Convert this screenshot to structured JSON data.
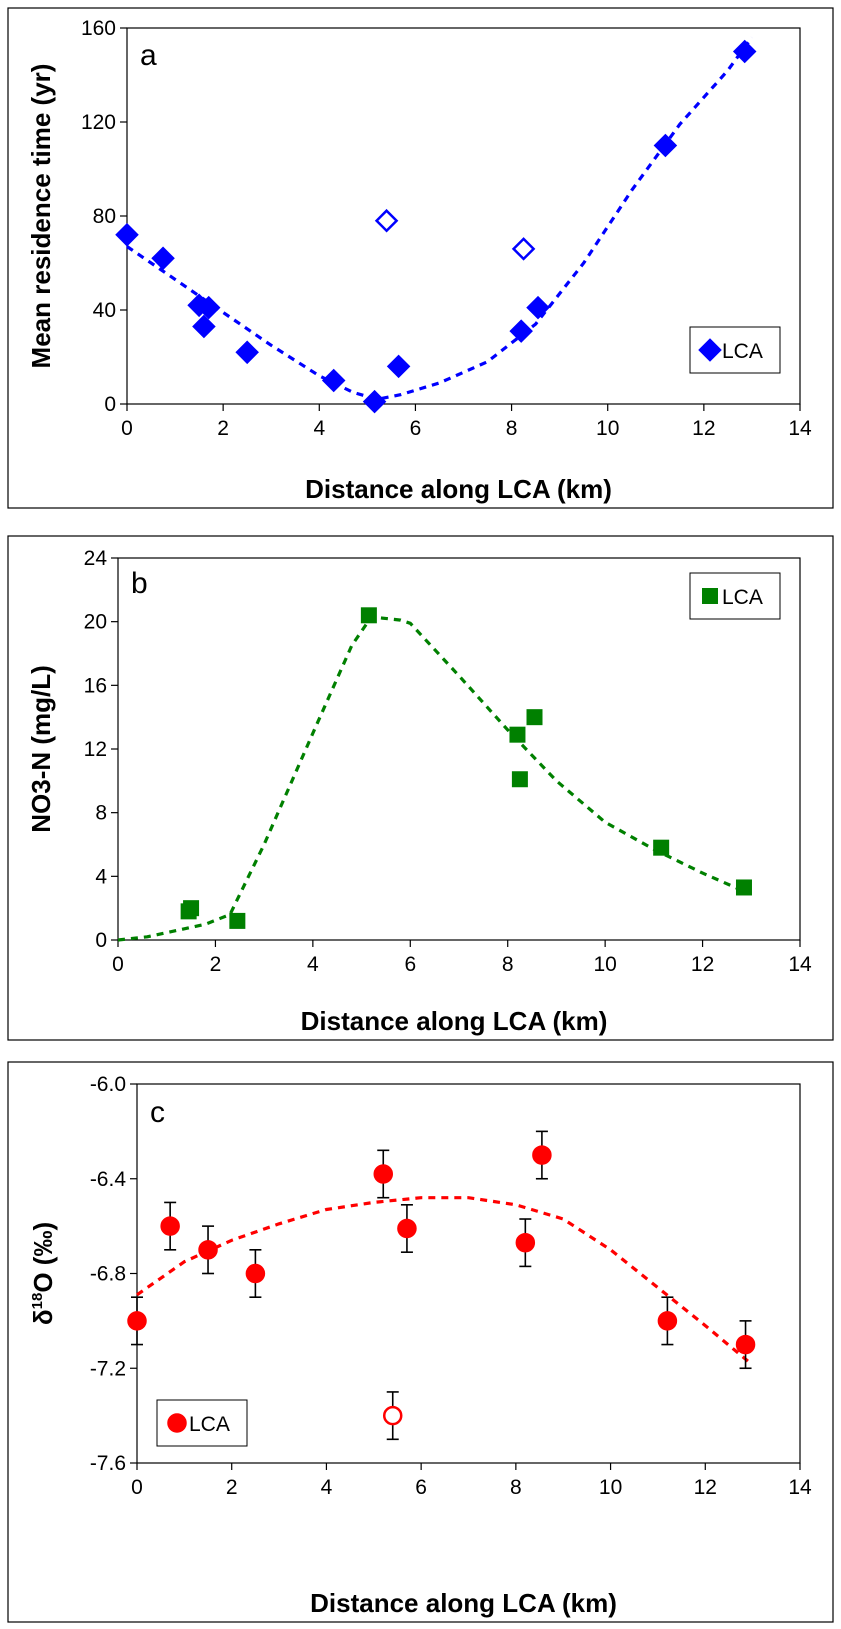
{
  "chart_data": [
    {
      "type": "scatter",
      "panel_letter": "a",
      "xlabel": "Distance along LCA (km)",
      "ylabel": "Mean residence time (yr)",
      "xlim": [
        0,
        14
      ],
      "ylim": [
        0,
        160
      ],
      "x_ticks": [
        "0",
        "2",
        "4",
        "6",
        "8",
        "10",
        "12",
        "14"
      ],
      "y_ticks": [
        "0",
        "40",
        "80",
        "120",
        "160"
      ],
      "color": "#0000ff",
      "marker": "diamond",
      "legend": {
        "label": "LCA",
        "placement": "bottom-right"
      },
      "points": [
        {
          "x": 0,
          "y": 72
        },
        {
          "x": 0.75,
          "y": 62
        },
        {
          "x": 1.5,
          "y": 42
        },
        {
          "x": 1.6,
          "y": 33
        },
        {
          "x": 1.7,
          "y": 41
        },
        {
          "x": 2.5,
          "y": 22
        },
        {
          "x": 4.3,
          "y": 10
        },
        {
          "x": 5.15,
          "y": 1
        },
        {
          "x": 5.65,
          "y": 16
        },
        {
          "x": 8.2,
          "y": 31
        },
        {
          "x": 8.55,
          "y": 41
        },
        {
          "x": 11.2,
          "y": 110
        },
        {
          "x": 12.85,
          "y": 150
        }
      ],
      "open_points": [
        {
          "x": 5.4,
          "y": 78
        },
        {
          "x": 8.25,
          "y": 66
        }
      ],
      "trendline": [
        {
          "x": 0,
          "y": 67
        },
        {
          "x": 1,
          "y": 53
        },
        {
          "x": 2,
          "y": 39
        },
        {
          "x": 3,
          "y": 25
        },
        {
          "x": 4,
          "y": 12
        },
        {
          "x": 4.7,
          "y": 5
        },
        {
          "x": 5.2,
          "y": 2
        },
        {
          "x": 5.7,
          "y": 4
        },
        {
          "x": 6.5,
          "y": 9
        },
        {
          "x": 7.5,
          "y": 18
        },
        {
          "x": 8.5,
          "y": 34
        },
        {
          "x": 9.5,
          "y": 60
        },
        {
          "x": 10.5,
          "y": 91
        },
        {
          "x": 11.5,
          "y": 119
        },
        {
          "x": 12.5,
          "y": 142
        },
        {
          "x": 13,
          "y": 156
        }
      ]
    },
    {
      "type": "scatter",
      "panel_letter": "b",
      "xlabel": "Distance along LCA (km)",
      "ylabel": "NO3-N (mg/L)",
      "xlim": [
        0,
        14
      ],
      "ylim": [
        0,
        24
      ],
      "x_ticks": [
        "0",
        "2",
        "4",
        "6",
        "8",
        "10",
        "12",
        "14"
      ],
      "y_ticks": [
        "0",
        "4",
        "8",
        "12",
        "16",
        "20",
        "24"
      ],
      "color": "#008000",
      "marker": "square",
      "legend": {
        "label": "LCA",
        "placement": "top-right"
      },
      "points": [
        {
          "x": 1.45,
          "y": 1.8
        },
        {
          "x": 1.5,
          "y": 2.0
        },
        {
          "x": 2.45,
          "y": 1.2
        },
        {
          "x": 5.15,
          "y": 20.4
        },
        {
          "x": 8.2,
          "y": 12.9
        },
        {
          "x": 8.25,
          "y": 10.1
        },
        {
          "x": 8.55,
          "y": 14.0
        },
        {
          "x": 11.15,
          "y": 5.8
        },
        {
          "x": 12.85,
          "y": 3.3
        }
      ],
      "trendline": [
        {
          "x": 0,
          "y": 0
        },
        {
          "x": 0.6,
          "y": 0.2
        },
        {
          "x": 1.2,
          "y": 0.6
        },
        {
          "x": 1.8,
          "y": 1.0
        },
        {
          "x": 2.3,
          "y": 1.6
        },
        {
          "x": 3.0,
          "y": 6.0
        },
        {
          "x": 4.0,
          "y": 13.0
        },
        {
          "x": 4.8,
          "y": 18.5
        },
        {
          "x": 5.2,
          "y": 20.3
        },
        {
          "x": 5.8,
          "y": 20.1
        },
        {
          "x": 6.0,
          "y": 19.9
        },
        {
          "x": 7.0,
          "y": 16.6
        },
        {
          "x": 8.0,
          "y": 13.2
        },
        {
          "x": 9.0,
          "y": 10.0
        },
        {
          "x": 10.0,
          "y": 7.4
        },
        {
          "x": 11.0,
          "y": 5.7
        },
        {
          "x": 12.0,
          "y": 4.2
        },
        {
          "x": 12.9,
          "y": 3.0
        }
      ]
    },
    {
      "type": "scatter",
      "panel_letter": "c",
      "xlabel": "Distance along LCA (km)",
      "ylabel_main": "δ",
      "ylabel_sup": "18",
      "ylabel_rest": "O (‰)",
      "xlim": [
        0,
        14
      ],
      "ylim": [
        -7.6,
        -6.0
      ],
      "x_ticks": [
        "0",
        "2",
        "4",
        "6",
        "8",
        "10",
        "12",
        "14"
      ],
      "y_ticks": [
        "-7.6",
        "-7.2",
        "-6.8",
        "-6.4",
        "-6.0"
      ],
      "color": "#ff0000",
      "marker": "circle",
      "legend": {
        "label": "LCA",
        "placement": "bottom-left"
      },
      "error": 0.1,
      "points": [
        {
          "x": 0,
          "y": -7.0
        },
        {
          "x": 0.7,
          "y": -6.6
        },
        {
          "x": 1.5,
          "y": -6.7
        },
        {
          "x": 2.5,
          "y": -6.8
        },
        {
          "x": 5.2,
          "y": -6.38
        },
        {
          "x": 5.7,
          "y": -6.61
        },
        {
          "x": 8.2,
          "y": -6.67
        },
        {
          "x": 8.55,
          "y": -6.3
        },
        {
          "x": 11.2,
          "y": -7.0
        },
        {
          "x": 12.85,
          "y": -7.1
        }
      ],
      "open_points": [
        {
          "x": 5.4,
          "y": -7.4
        }
      ],
      "trendline": [
        {
          "x": 0,
          "y": -6.89
        },
        {
          "x": 1,
          "y": -6.75
        },
        {
          "x": 2,
          "y": -6.66
        },
        {
          "x": 3,
          "y": -6.59
        },
        {
          "x": 4,
          "y": -6.53
        },
        {
          "x": 5,
          "y": -6.5
        },
        {
          "x": 6,
          "y": -6.48
        },
        {
          "x": 7,
          "y": -6.48
        },
        {
          "x": 8,
          "y": -6.51
        },
        {
          "x": 9,
          "y": -6.57
        },
        {
          "x": 10,
          "y": -6.7
        },
        {
          "x": 11,
          "y": -6.86
        },
        {
          "x": 12,
          "y": -7.02
        },
        {
          "x": 12.9,
          "y": -7.17
        }
      ]
    }
  ]
}
